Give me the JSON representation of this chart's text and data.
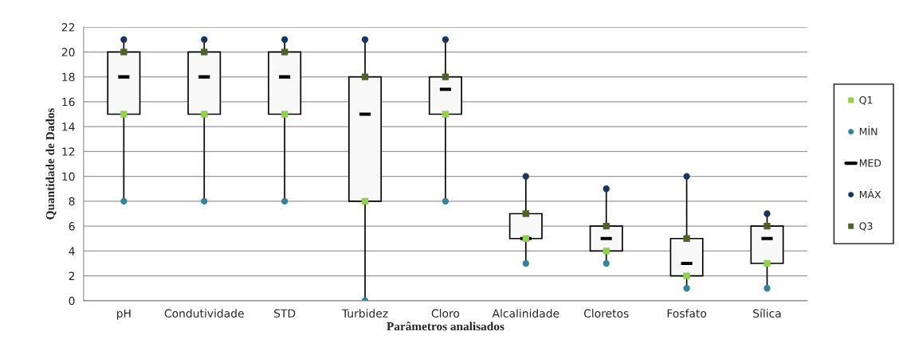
{
  "chart_data": {
    "type": "box",
    "xlabel": "Parâmetros analisados",
    "ylabel": "Quantidade de Dados",
    "categories": [
      "pH",
      "Condutividade",
      "STD",
      "Turbidez",
      "Cloro",
      "Alcalinidade",
      "Cloretos",
      "Fosfato",
      "Sílica"
    ],
    "series": [
      {
        "name": "Q1",
        "type": "scatter",
        "marker": "square",
        "color": "#92d050",
        "values": [
          15,
          15,
          15,
          8,
          15,
          5,
          4,
          2,
          3
        ]
      },
      {
        "name": "MÍN",
        "type": "scatter",
        "marker": "circle",
        "color": "#31849b",
        "values": [
          8,
          8,
          8,
          0,
          8,
          3,
          3,
          1,
          1
        ]
      },
      {
        "name": "MED",
        "color": "#000000",
        "boxes": [
          {
            "low": 8,
            "q1": 15,
            "median": 18,
            "q3": 20,
            "high": 21
          },
          {
            "low": 8,
            "q1": 15,
            "median": 18,
            "q3": 20,
            "high": 21
          },
          {
            "low": 8,
            "q1": 15,
            "median": 18,
            "q3": 20,
            "high": 21
          },
          {
            "low": 0,
            "q1": 8,
            "median": 15,
            "q3": 18,
            "high": 21
          },
          {
            "low": 8,
            "q1": 15,
            "median": 17,
            "q3": 18,
            "high": 21
          },
          {
            "low": 3,
            "q1": 5,
            "median": 5,
            "q3": 7,
            "high": 10
          },
          {
            "low": 3,
            "q1": 4,
            "median": 5,
            "q3": 6,
            "high": 9
          },
          {
            "low": 1,
            "q1": 2,
            "median": 3,
            "q3": 5,
            "high": 10
          },
          {
            "low": 1,
            "q1": 3,
            "median": 5,
            "q3": 6,
            "high": 7
          }
        ]
      },
      {
        "name": "MÁX",
        "type": "scatter",
        "marker": "circle",
        "color": "#17375e",
        "values": [
          21,
          21,
          21,
          21,
          21,
          10,
          9,
          10,
          7
        ]
      },
      {
        "name": "Q3",
        "type": "scatter",
        "marker": "square",
        "color": "#4f6228",
        "values": [
          20,
          20,
          20,
          18,
          18,
          7,
          6,
          5,
          6
        ]
      }
    ],
    "ylim": [
      0,
      22
    ],
    "yticks": [
      0,
      2,
      4,
      6,
      8,
      10,
      12,
      14,
      16,
      18,
      20,
      22
    ],
    "grid": "y",
    "legend": "right"
  }
}
